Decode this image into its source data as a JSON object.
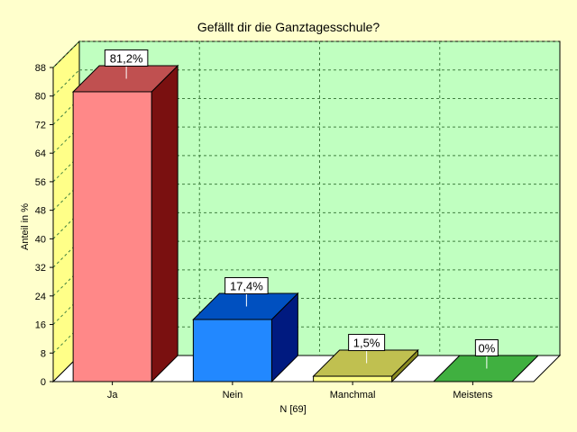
{
  "chart_data": {
    "type": "bar",
    "title": "Gefällt dir die Ganztagesschule?",
    "ylabel": "Anteil in %",
    "xlabel": "N [69]",
    "ylim": [
      0,
      88
    ],
    "yticks": [
      0,
      8,
      16,
      24,
      32,
      40,
      48,
      56,
      64,
      72,
      80,
      88
    ],
    "categories": [
      "Ja",
      "Nein",
      "Manchmal",
      "Meistens"
    ],
    "values": [
      81.2,
      17.4,
      1.5,
      0
    ],
    "value_labels": [
      "81,2%",
      "17,4%",
      "1,5%",
      "0%"
    ],
    "bar_colors": [
      {
        "front": "#ff8888",
        "top": "#c05050",
        "side": "#7a1010"
      },
      {
        "front": "#2288ff",
        "top": "#0050c0",
        "side": "#001a80"
      },
      {
        "front": "#ffff88",
        "top": "#c0c050",
        "side": "#8a8a20"
      },
      {
        "front": "#55cc55",
        "top": "#40b040",
        "side": "#209020"
      }
    ],
    "colors": {
      "page_background": "#ffffcc",
      "plot_background": "#c0ffc0",
      "left_wall": "#ffff88",
      "floor": "#ffffff",
      "grid": "#408040"
    },
    "grid": true,
    "legend": "none"
  }
}
